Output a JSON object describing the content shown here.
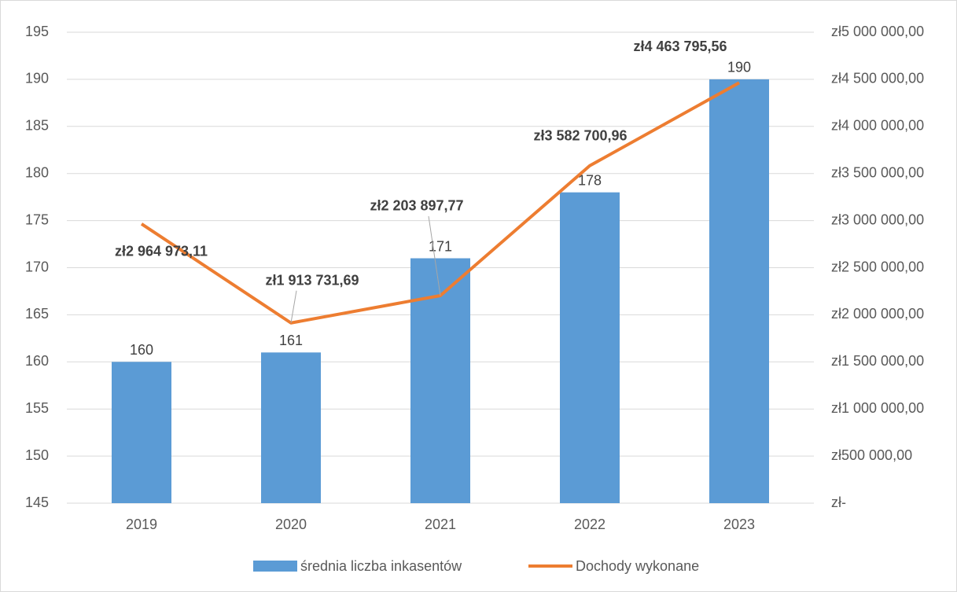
{
  "chart_data": {
    "type": "bar",
    "categories": [
      "2019",
      "2020",
      "2021",
      "2022",
      "2023"
    ],
    "series": [
      {
        "name": "średnia liczba inkasentów",
        "color": "#5b9bd5",
        "type": "bar",
        "values": [
          160,
          161,
          171,
          178,
          190
        ]
      },
      {
        "name": "Dochody wykonane",
        "color": "#ed7d31",
        "type": "line",
        "axis": "y2",
        "values": [
          2964973.11,
          1913731.69,
          2203897.77,
          3582700.96,
          4463795.56
        ],
        "value_labels": [
          "zł2 964 973,11",
          "zł1 913 731,69",
          "zł2 203 897,77",
          "zł3 582 700,96",
          "zł4 463 795,56"
        ]
      }
    ],
    "ylim": [
      145,
      195
    ],
    "yticks": [
      145,
      150,
      155,
      160,
      165,
      170,
      175,
      180,
      185,
      190,
      195
    ],
    "y2lim": [
      0,
      5000000
    ],
    "y2ticks": [
      {
        "value": 0,
        "label": "zł-"
      },
      {
        "value": 500000,
        "label": "zł500 000,00"
      },
      {
        "value": 1000000,
        "label": "zł1 000 000,00"
      },
      {
        "value": 1500000,
        "label": "zł1 500 000,00"
      },
      {
        "value": 2000000,
        "label": "zł2 000 000,00"
      },
      {
        "value": 2500000,
        "label": "zł2 500 000,00"
      },
      {
        "value": 3000000,
        "label": "zł3 000 000,00"
      },
      {
        "value": 3500000,
        "label": "zł3 500 000,00"
      },
      {
        "value": 4000000,
        "label": "zł4 000 000,00"
      },
      {
        "value": 4500000,
        "label": "zł4 500 000,00"
      },
      {
        "value": 5000000,
        "label": "zł5 000 000,00"
      }
    ],
    "grid": true,
    "legend": "bottom"
  }
}
